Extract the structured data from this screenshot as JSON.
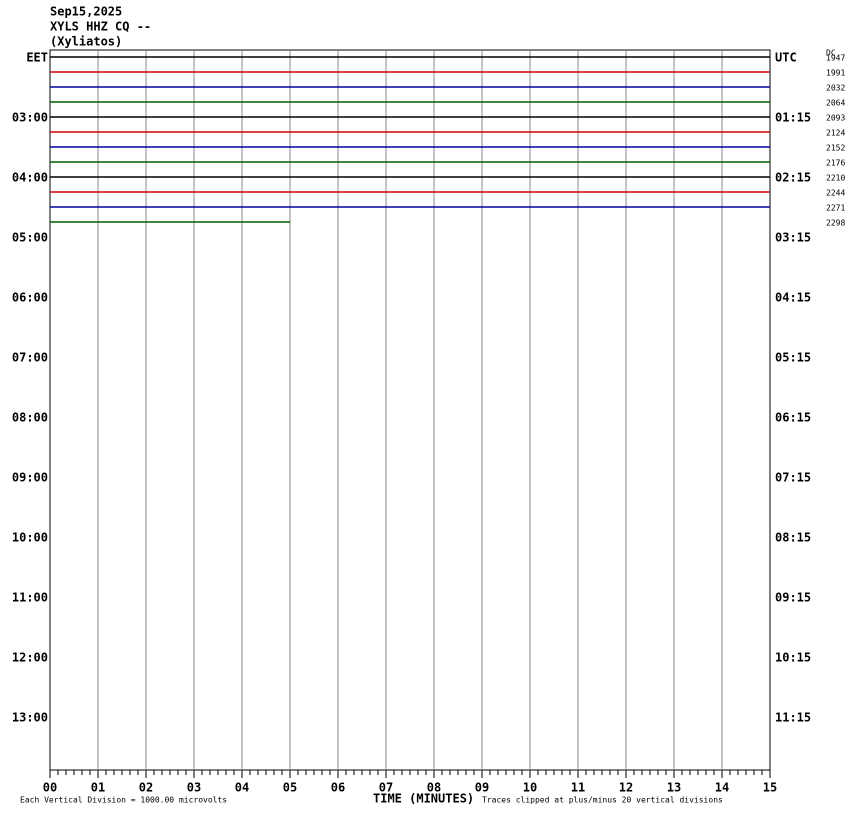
{
  "header": {
    "date": "Sep15,2025",
    "station": "XYLS HHZ CQ --",
    "location": "(Xyliatos)"
  },
  "left_labels": [
    "EET",
    "03:00",
    "04:00",
    "05:00",
    "06:00",
    "07:00",
    "08:00",
    "09:00",
    "10:00",
    "11:00",
    "12:00",
    "13:00"
  ],
  "right_labels": [
    "UTC",
    "01:15",
    "02:15",
    "03:15",
    "04:15",
    "05:15",
    "06:15",
    "07:15",
    "08:15",
    "09:15",
    "10:15",
    "11:15"
  ],
  "dc_label": "DC",
  "dc_values": [
    "1947",
    "1991",
    "2032",
    "2064",
    "2093",
    "2124",
    "2152",
    "2176",
    "2210",
    "2244",
    "2271",
    "2298"
  ],
  "traces": [
    {
      "color": "#000000",
      "end": 15
    },
    {
      "color": "#d00000",
      "end": 15
    },
    {
      "color": "#0000a0",
      "end": 15
    },
    {
      "color": "#006000",
      "end": 15
    },
    {
      "color": "#000000",
      "end": 15
    },
    {
      "color": "#d00000",
      "end": 15
    },
    {
      "color": "#0000a0",
      "end": 15
    },
    {
      "color": "#006000",
      "end": 15
    },
    {
      "color": "#000000",
      "end": 15
    },
    {
      "color": "#d00000",
      "end": 15
    },
    {
      "color": "#0000a0",
      "end": 15
    },
    {
      "color": "#006000",
      "end": 5
    }
  ],
  "x_ticks": [
    "00",
    "01",
    "02",
    "03",
    "04",
    "05",
    "06",
    "07",
    "08",
    "09",
    "10",
    "11",
    "12",
    "13",
    "14",
    "15"
  ],
  "footer": {
    "scale": "Each Vertical Division = 1000.00 microvolts",
    "axis_title": "TIME (MINUTES)",
    "clip_note": "Traces clipped at plus/minus 20 vertical divisions"
  }
}
